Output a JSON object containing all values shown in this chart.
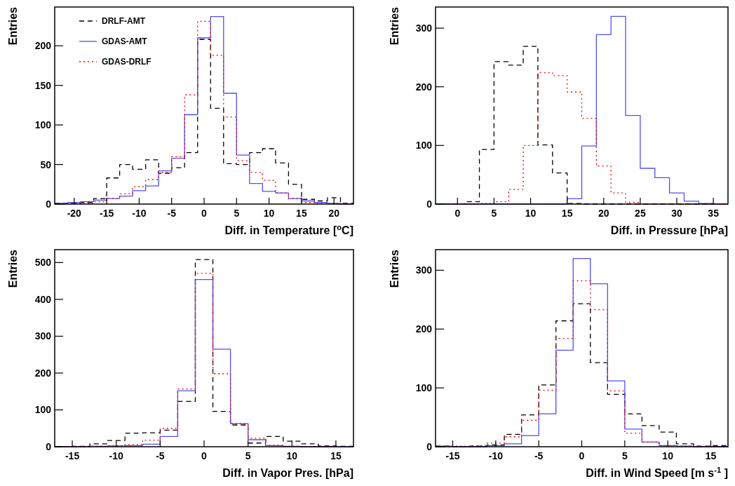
{
  "chart_data": [
    {
      "type": "histogram",
      "xlabel": "Diff. in Temperature [$^{o}$C]",
      "ylabel": "Entries",
      "legend": "top left",
      "bins": [
        -23,
        -21,
        -19,
        -17,
        -15,
        -13,
        -11,
        -9,
        -7,
        -5,
        -3,
        -1,
        1,
        3,
        5,
        7,
        9,
        11,
        13,
        15,
        17,
        19,
        21,
        23
      ],
      "xlim": [
        -23,
        23
      ],
      "xticks": [
        -20,
        -15,
        -10,
        -5,
        0,
        5,
        10,
        15,
        20
      ],
      "ylim": [
        0,
        249
      ],
      "yticks": [
        0,
        50,
        100,
        150,
        200
      ],
      "series": [
        {
          "name": "DRLF-AMT",
          "color": "#000000",
          "line_style": "dashed",
          "values": [
            1,
            1,
            2,
            7,
            33,
            50,
            44,
            56,
            39,
            46,
            65,
            208,
            121,
            51,
            50,
            65,
            70,
            52,
            25,
            6,
            4,
            8,
            1
          ]
        },
        {
          "name": "GDAS-AMT",
          "color": "#5050f0",
          "line_style": "solid",
          "values": [
            1,
            2,
            3,
            5,
            7,
            10,
            17,
            23,
            42,
            58,
            113,
            210,
            237,
            140,
            62,
            26,
            16,
            14,
            7,
            4,
            2,
            1,
            0
          ]
        },
        {
          "name": "GDAS-DRLF",
          "color": "#ff0000",
          "line_style": "dotted",
          "values": [
            0,
            1,
            1,
            3,
            7,
            13,
            22,
            31,
            40,
            60,
            138,
            231,
            188,
            110,
            55,
            40,
            30,
            14,
            7,
            2,
            1,
            0,
            0
          ]
        }
      ]
    },
    {
      "type": "histogram",
      "xlabel": "Diff. in Pressure [hPa]",
      "ylabel": "Entries",
      "bins": [
        -3,
        -1,
        1,
        3,
        5,
        7,
        9,
        11,
        13,
        15,
        17,
        19,
        21,
        23,
        25,
        27,
        29,
        31,
        33,
        35,
        37
      ],
      "xlim": [
        -3,
        37
      ],
      "xticks": [
        0,
        5,
        10,
        15,
        20,
        25,
        30,
        35
      ],
      "ylim": [
        0,
        336
      ],
      "yticks": [
        0,
        100,
        200,
        300
      ],
      "series": [
        {
          "color": "#000000",
          "line_style": "dashed",
          "values": [
            0,
            0,
            4,
            93,
            243,
            237,
            269,
            101,
            53,
            1,
            0,
            0,
            0,
            0,
            0,
            0,
            0,
            0,
            0,
            0
          ]
        },
        {
          "color": "#5050f0",
          "line_style": "solid",
          "values": [
            0,
            0,
            0,
            0,
            0,
            0,
            0,
            0,
            0,
            9,
            99,
            289,
            320,
            151,
            61,
            45,
            19,
            5,
            1,
            0
          ]
        },
        {
          "color": "#ff0000",
          "line_style": "dotted",
          "values": [
            0,
            0,
            0,
            1,
            4,
            25,
            100,
            224,
            219,
            191,
            146,
            65,
            19,
            3,
            0,
            0,
            0,
            0,
            0,
            0
          ]
        }
      ]
    },
    {
      "type": "histogram",
      "xlabel": "Diff. in Vapor Pres. [hPa]",
      "ylabel": "Entries",
      "bins": [
        -17,
        -15,
        -13,
        -11,
        -9,
        -7,
        -5,
        -3,
        -1,
        1,
        3,
        5,
        7,
        9,
        11,
        13,
        15,
        17
      ],
      "xlim": [
        -17,
        17
      ],
      "xticks": [
        -15,
        -10,
        -5,
        0,
        5,
        10,
        15
      ],
      "ylim": [
        0,
        535
      ],
      "yticks": [
        0,
        100,
        200,
        300,
        400,
        500
      ],
      "series": [
        {
          "color": "#000000",
          "line_style": "dashed",
          "values": [
            0,
            1,
            8,
            17,
            37,
            38,
            45,
            123,
            508,
            96,
            59,
            10,
            28,
            15,
            8,
            2,
            1
          ]
        },
        {
          "color": "#5050f0",
          "line_style": "solid",
          "values": [
            0,
            0,
            1,
            2,
            3,
            7,
            28,
            152,
            454,
            265,
            63,
            19,
            3,
            1,
            0,
            0,
            0
          ]
        },
        {
          "color": "#ff0000",
          "line_style": "dotted",
          "values": [
            0,
            0,
            1,
            3,
            6,
            18,
            50,
            157,
            471,
            198,
            62,
            23,
            4,
            1,
            0,
            0,
            0
          ]
        }
      ]
    },
    {
      "type": "histogram",
      "xlabel": "Diff. in Wind Speed [m s$^{-1}$ ]",
      "ylabel": "Entries",
      "bins": [
        -17,
        -15,
        -13,
        -11,
        -9,
        -7,
        -5,
        -3,
        -1,
        1,
        3,
        5,
        7,
        9,
        11,
        13,
        15,
        17
      ],
      "xlim": [
        -17,
        17
      ],
      "xticks": [
        -15,
        -10,
        -5,
        0,
        5,
        10,
        15
      ],
      "ylim": [
        0,
        335
      ],
      "yticks": [
        0,
        100,
        200,
        300
      ],
      "series": [
        {
          "color": "#000000",
          "line_style": "dashed",
          "values": [
            1,
            0,
            1,
            3,
            21,
            54,
            105,
            214,
            243,
            143,
            89,
            56,
            36,
            25,
            5,
            1,
            2
          ]
        },
        {
          "color": "#5050f0",
          "line_style": "solid",
          "values": [
            1,
            0,
            0,
            2,
            5,
            19,
            56,
            164,
            320,
            277,
            112,
            30,
            8,
            2,
            1,
            0,
            0
          ]
        },
        {
          "color": "#ff0000",
          "line_style": "dotted",
          "values": [
            0,
            1,
            2,
            6,
            17,
            45,
            96,
            184,
            282,
            233,
            95,
            23,
            8,
            2,
            1,
            0,
            0
          ]
        }
      ]
    }
  ]
}
